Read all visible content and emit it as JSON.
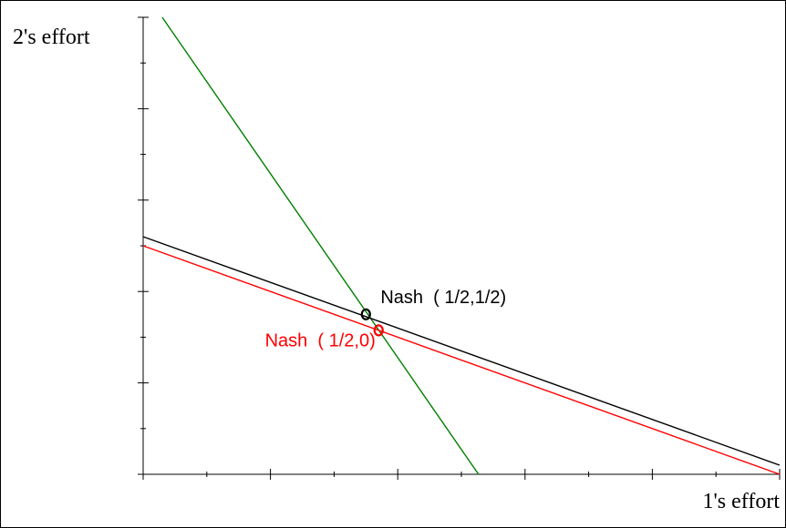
{
  "chart_data": {
    "type": "line",
    "title": "",
    "xlabel": "1's effort",
    "ylabel": "2's effort",
    "xlim": [
      0,
      1
    ],
    "ylim": [
      0,
      1
    ],
    "x_major_ticks": 5,
    "x_minor_ticks": 10,
    "y_major_ticks": 5,
    "y_minor_ticks": 10,
    "grid": false,
    "legend": "none",
    "series": [
      {
        "color": "#008000",
        "points": [
          [
            0.03,
            1.0
          ],
          [
            0.527,
            0.0
          ]
        ]
      },
      {
        "color": "#000000",
        "points": [
          [
            0.0,
            0.52
          ],
          [
            1.0,
            0.02
          ]
        ]
      },
      {
        "color": "#ff0000",
        "points": [
          [
            0.0,
            0.5
          ],
          [
            1.0,
            0.0
          ]
        ]
      }
    ],
    "markers": [
      {
        "x": 0.35,
        "y": 0.35,
        "color": "#000000"
      },
      {
        "x": 0.37,
        "y": 0.315,
        "color": "#ff0000"
      }
    ],
    "annotations": [
      {
        "text": "Nash  ( 1/2,1/2)",
        "x": 0.373,
        "y": 0.375,
        "anchor": "start",
        "color": "#000000"
      },
      {
        "text": "Nash  ( 1/2,0)",
        "x": 0.365,
        "y": 0.28,
        "anchor": "end",
        "color": "#ff0000"
      }
    ]
  }
}
